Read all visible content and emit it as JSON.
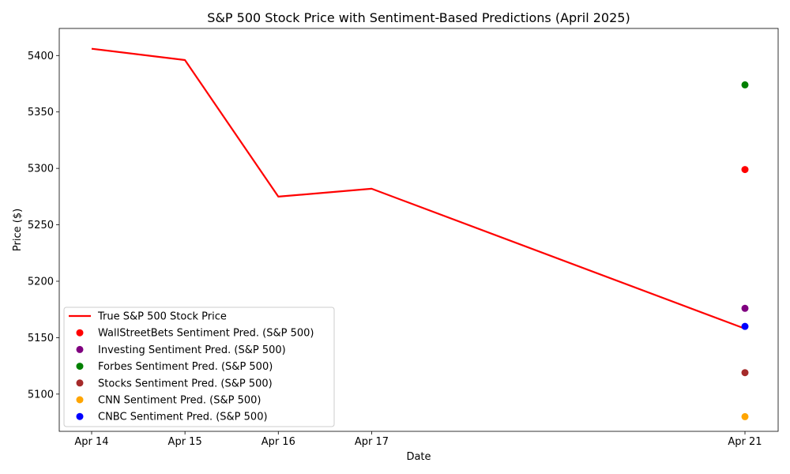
{
  "chart_data": {
    "type": "line",
    "title": "S&P 500 Stock Price with Sentiment-Based Predictions (April 2025)",
    "xlabel": "Date",
    "ylabel": "Price ($)",
    "x_dates": [
      "2025-04-14",
      "2025-04-15",
      "2025-04-16",
      "2025-04-17",
      "2025-04-21"
    ],
    "x_tick_labels": [
      "Apr 14",
      "Apr 15",
      "Apr 16",
      "Apr 17",
      "Apr 21"
    ],
    "ylim": [
      5067,
      5424
    ],
    "y_ticks": [
      5100,
      5150,
      5200,
      5250,
      5300,
      5350,
      5400
    ],
    "grid": false,
    "legend_position": "lower-left",
    "line_series": {
      "name": "True S&P 500 Stock Price",
      "color": "#ff0000",
      "x": [
        "2025-04-14",
        "2025-04-15",
        "2025-04-16",
        "2025-04-17",
        "2025-04-21"
      ],
      "values": [
        5406,
        5396,
        5275,
        5282,
        5158
      ]
    },
    "prediction_series": [
      {
        "name": "WallStreetBets Sentiment Pred. (S&P 500)",
        "color": "#ff0000",
        "x": "2025-04-21",
        "value": 5299
      },
      {
        "name": "Investing Sentiment Pred. (S&P 500)",
        "color": "#800080",
        "x": "2025-04-21",
        "value": 5176
      },
      {
        "name": "Forbes Sentiment Pred. (S&P 500)",
        "color": "#008000",
        "x": "2025-04-21",
        "value": 5374
      },
      {
        "name": "Stocks Sentiment Pred. (S&P 500)",
        "color": "#a52a2a",
        "x": "2025-04-21",
        "value": 5119
      },
      {
        "name": "CNN Sentiment Pred. (S&P 500)",
        "color": "#ffa500",
        "x": "2025-04-21",
        "value": 5080
      },
      {
        "name": "CNBC Sentiment Pred. (S&P 500)",
        "color": "#0000ff",
        "x": "2025-04-21",
        "value": 5160
      }
    ]
  }
}
